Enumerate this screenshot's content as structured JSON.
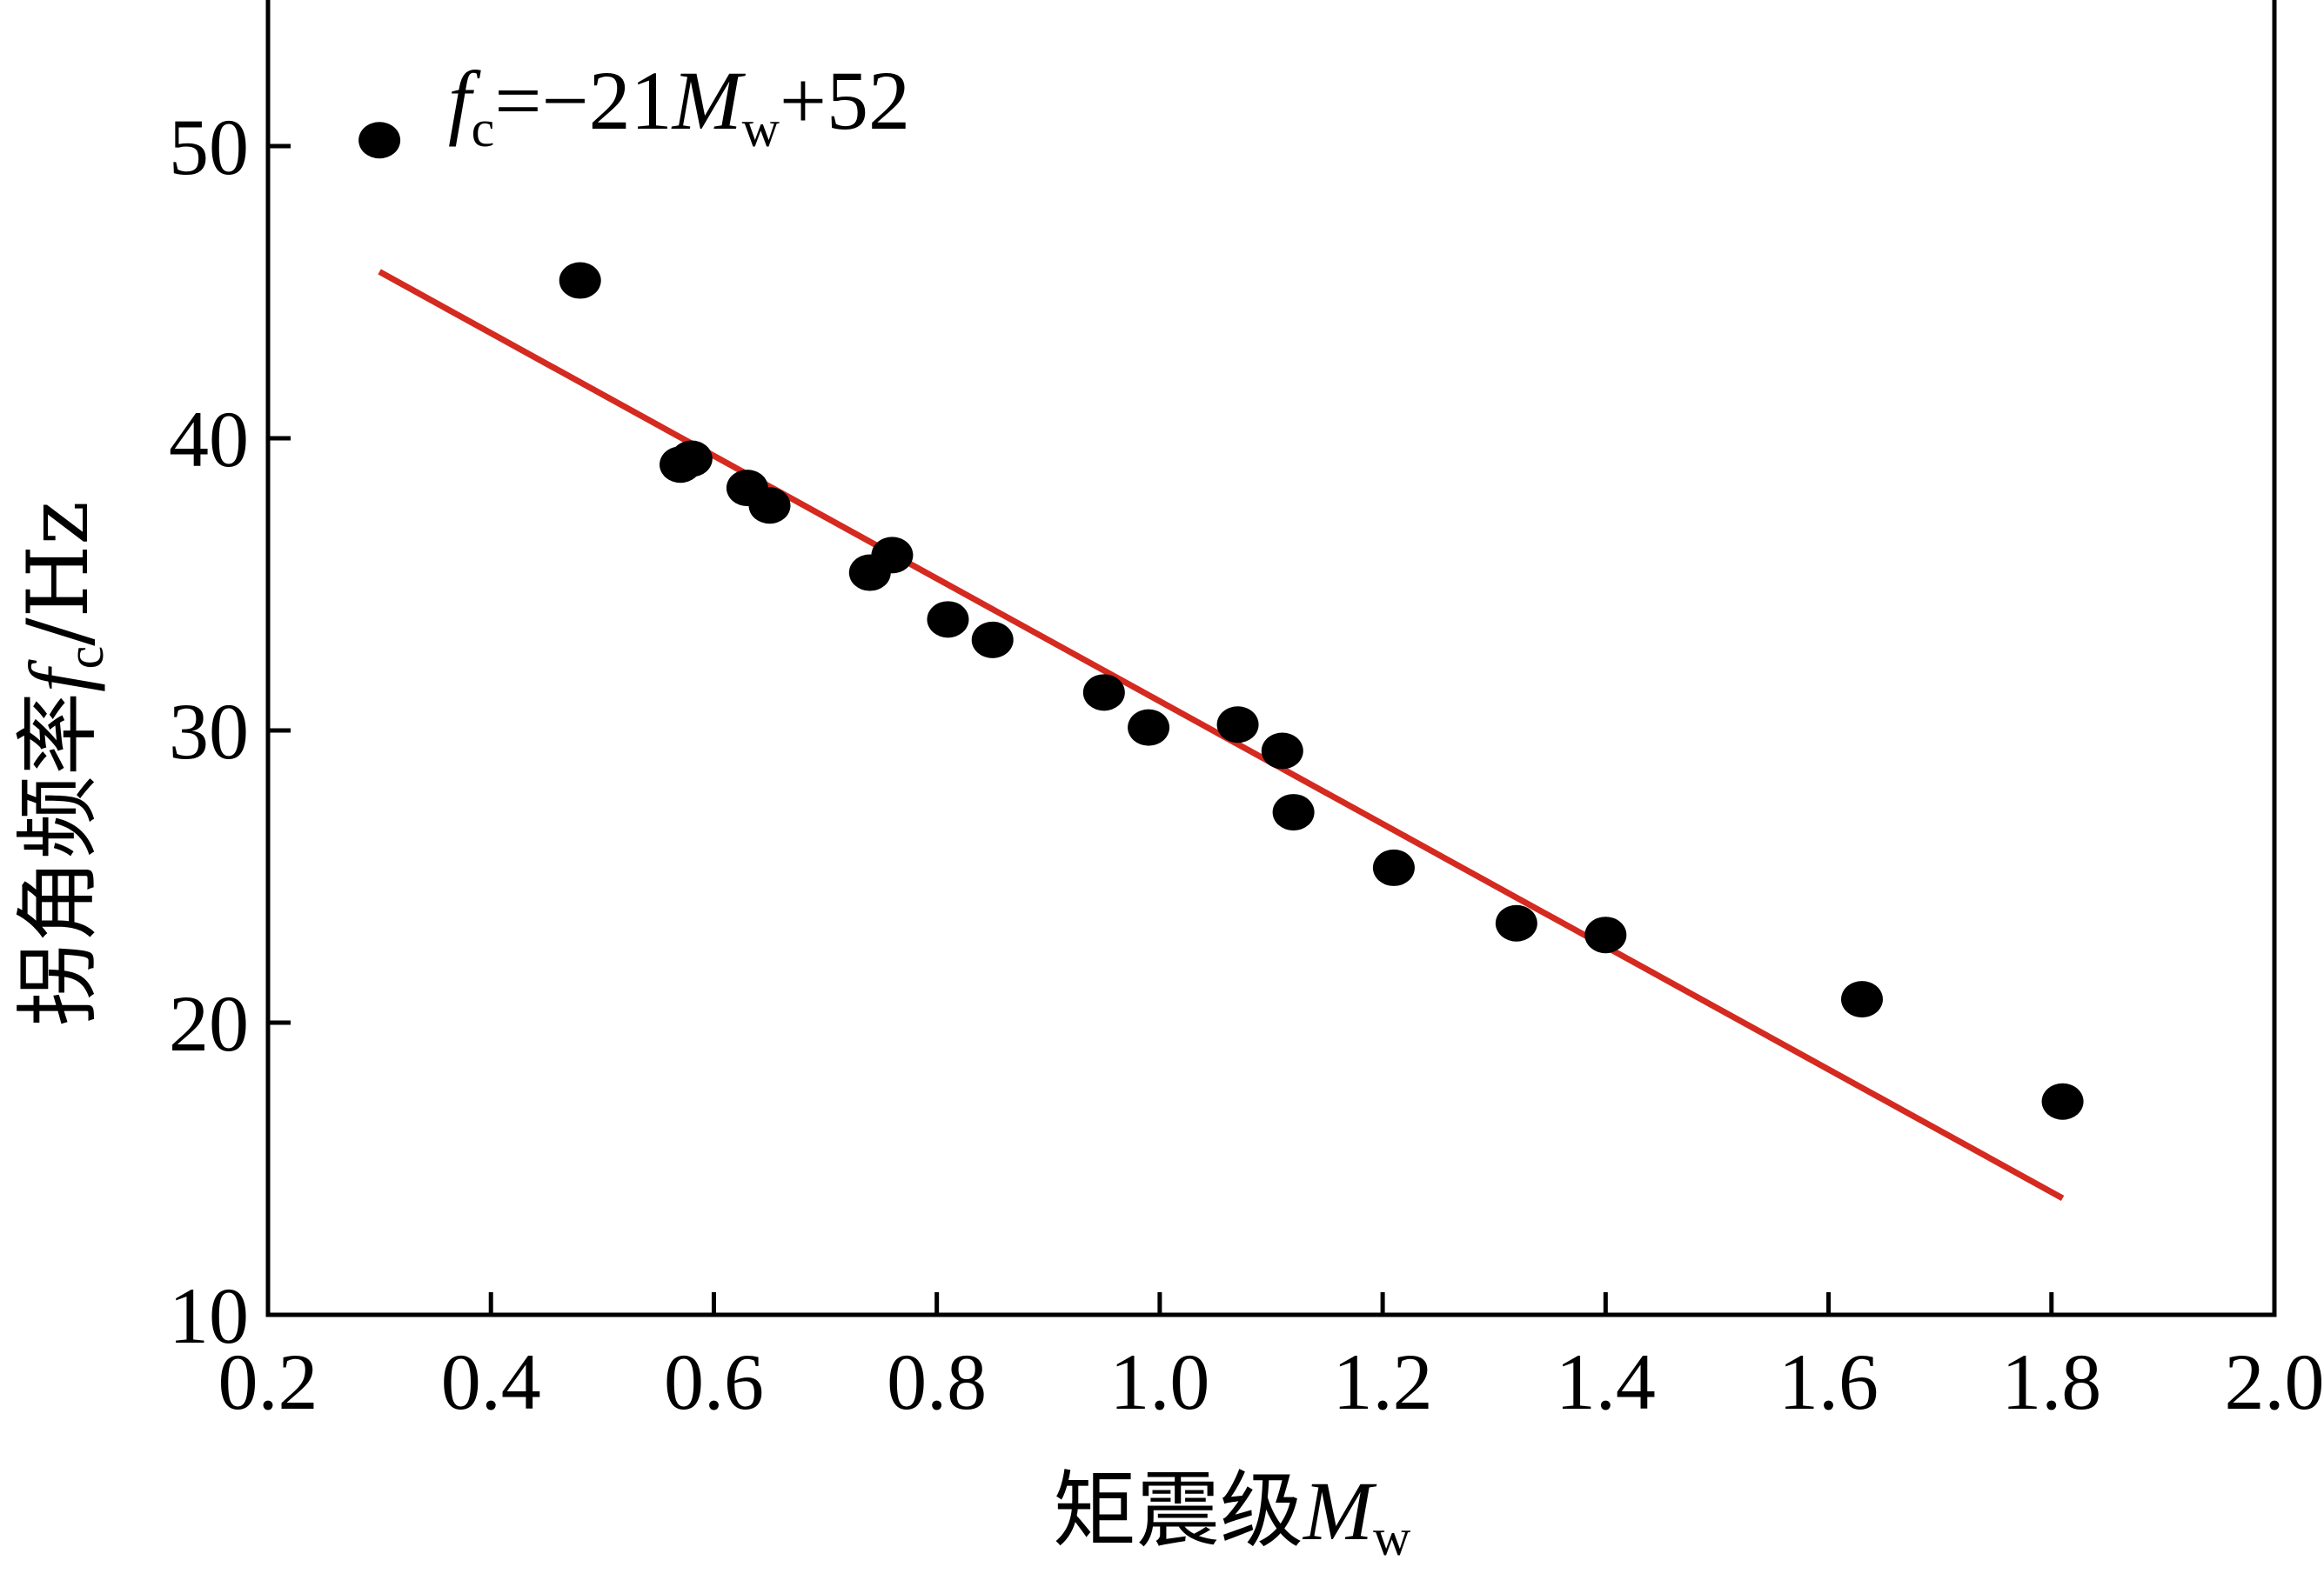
{
  "chart_data": {
    "type": "scatter",
    "xlabel": "矩震级",
    "xlabel_var": "M",
    "xlabel_sub": "w",
    "ylabel": "拐角频率",
    "ylabel_var": "f",
    "ylabel_sub": "c",
    "ylabel_unit": "/Hz",
    "xlim": [
      0.2,
      2.0
    ],
    "ylim": [
      10,
      55
    ],
    "xticks": [
      "0.2",
      "0.4",
      "0.6",
      "0.8",
      "1.0",
      "1.2",
      "1.4",
      "1.6",
      "1.8",
      "2.0"
    ],
    "yticks": [
      "10",
      "20",
      "30",
      "40",
      "50"
    ],
    "points": {
      "x": [
        0.3,
        0.48,
        0.57,
        0.58,
        0.63,
        0.65,
        0.74,
        0.76,
        0.81,
        0.85,
        0.95,
        0.99,
        1.07,
        1.11,
        1.12,
        1.21,
        1.32,
        1.4,
        1.63,
        1.81
      ],
      "y": [
        50.2,
        45.4,
        39.1,
        39.3,
        38.3,
        37.7,
        35.4,
        36.0,
        33.8,
        33.1,
        31.3,
        30.1,
        30.2,
        29.3,
        27.2,
        25.3,
        23.4,
        23.0,
        20.8,
        17.3
      ]
    },
    "fit_line": {
      "slope": -21,
      "intercept": 52,
      "x_range": [
        0.3,
        1.81
      ],
      "color": "#d42a20"
    },
    "equation": {
      "f": "f",
      "f_sub": "c",
      "middle": "=−21",
      "M": "M",
      "M_sub": "w",
      "tail": "+52"
    },
    "marker_color": "#000000",
    "grid": false
  }
}
